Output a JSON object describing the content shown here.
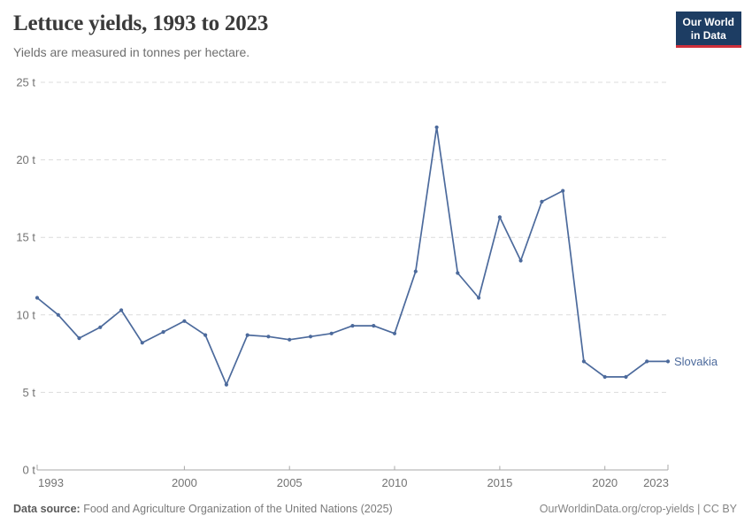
{
  "header": {
    "title": "Lettuce yields, 1993 to 2023",
    "subtitle": "Yields are measured in tonnes per hectare.",
    "logo_line1": "Our World",
    "logo_line2": "in Data"
  },
  "chart_data": {
    "type": "line",
    "title": "Lettuce yields, 1993 to 2023",
    "ylabel": "tonnes per hectare",
    "xlim": [
      1993,
      2023
    ],
    "ylim": [
      0,
      25
    ],
    "x_ticks": [
      1993,
      2000,
      2005,
      2010,
      2015,
      2020,
      2023
    ],
    "y_ticks": [
      0,
      5,
      10,
      15,
      20,
      25
    ],
    "y_tick_suffix": " t",
    "grid": "horizontal-dashed",
    "legend": "end-of-line-label",
    "series": [
      {
        "name": "Slovakia",
        "color": "#4C6A9C",
        "x": [
          1993,
          1994,
          1995,
          1996,
          1997,
          1998,
          1999,
          2000,
          2001,
          2002,
          2003,
          2004,
          2005,
          2006,
          2007,
          2008,
          2009,
          2010,
          2011,
          2012,
          2013,
          2014,
          2015,
          2016,
          2017,
          2018,
          2019,
          2020,
          2021,
          2022,
          2023
        ],
        "values": [
          11.1,
          10.0,
          8.5,
          9.2,
          10.3,
          8.2,
          8.9,
          9.6,
          8.7,
          5.5,
          8.7,
          8.6,
          8.4,
          8.6,
          8.8,
          9.3,
          9.3,
          8.8,
          12.8,
          22.1,
          12.7,
          11.1,
          16.3,
          13.5,
          17.3,
          18.0,
          7.0,
          6.0,
          6.0,
          7.0,
          7.0
        ]
      }
    ]
  },
  "footer": {
    "datasource_label": "Data source:",
    "datasource_text": " Food and Agriculture Organization of the United Nations (2025)",
    "credit": "OurWorldinData.org/crop-yields | CC BY"
  },
  "colors": {
    "line": "#4C6A9C",
    "gridline": "#dcdcdc",
    "axis": "#a8a8a8",
    "logo_navy": "#1d3d63",
    "logo_red": "#cf303b"
  }
}
